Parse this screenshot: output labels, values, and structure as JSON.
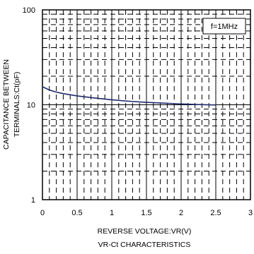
{
  "chart_data": {
    "type": "line",
    "title": "VR-Ct CHARACTERISTICS",
    "xlabel": "REVERSE VOLTAGE:VR(V)",
    "ylabel_lines": [
      "CAPACITANCE BETWEEN",
      "TERMINALS:Ct(pF)"
    ],
    "annotation": "f=1MHz",
    "xlim": [
      0,
      3
    ],
    "ylim": [
      1,
      100
    ],
    "yscale": "log",
    "x_ticks": [
      "0",
      "0.5",
      "1",
      "1.5",
      "2",
      "2.5",
      "3"
    ],
    "y_ticks": [
      "1",
      "10",
      "100"
    ],
    "grid": true,
    "series": [
      {
        "color": "#1f2a6b",
        "x": [
          0,
          0.1,
          0.2,
          0.3,
          0.5,
          0.7,
          1.0,
          1.25,
          1.5,
          1.75,
          2.0,
          2.25,
          2.5
        ],
        "y": [
          15.5,
          14.3,
          13.6,
          13.1,
          12.4,
          11.9,
          11.3,
          10.9,
          10.6,
          10.4,
          10.2,
          10.05,
          9.95
        ]
      }
    ]
  }
}
